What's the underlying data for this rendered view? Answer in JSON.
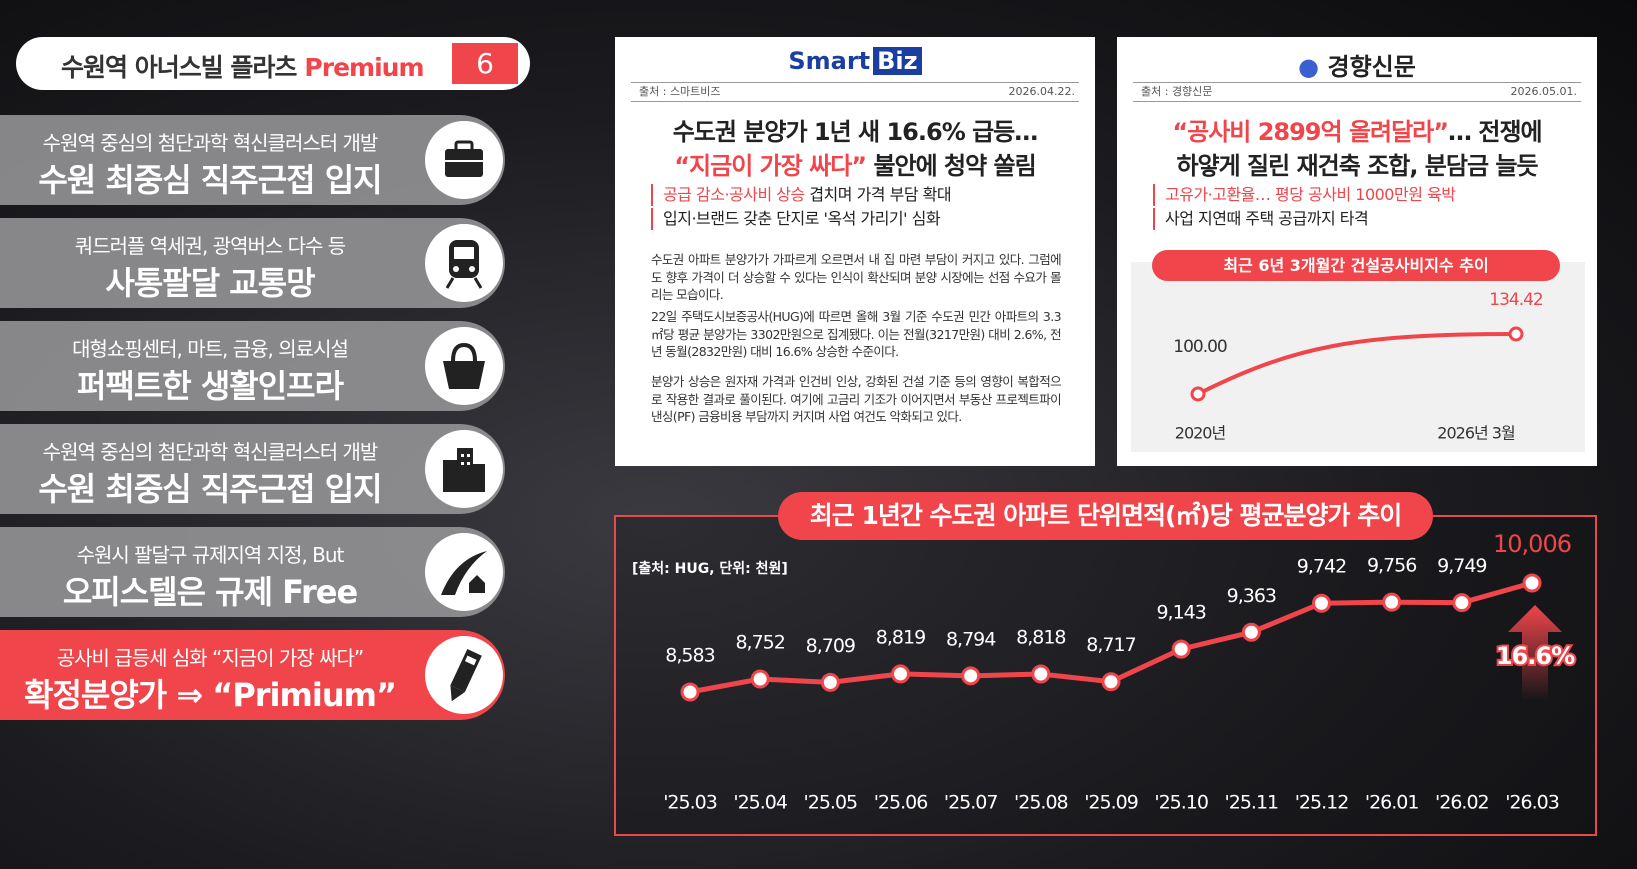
{
  "header": {
    "title": "수원역 아너스빌 플라츠",
    "badge": "Premium",
    "number": "6"
  },
  "features": [
    {
      "line1": "수원역 중심의 첨단과학 혁신클러스터 개발",
      "line2": "수원 최중심 직주근접 입지"
    },
    {
      "line1": "쿼드러플 역세권, 광역버스 다수 등",
      "line2": "사통팔달 교통망"
    },
    {
      "line1": "대형쇼핑센터, 마트, 금융, 의료시설",
      "line2": "퍼팩트한 생활인프라"
    },
    {
      "line1": "수원역 중심의 첨단과학 혁신클러스터 개발",
      "line2": "수원 최중심 직주근접 입지"
    },
    {
      "line1": "수원시 팔달구 규제지역 지정, But",
      "line2": "오피스텔은 규제 Free"
    },
    {
      "line1": "공사비 급등세 심화 “지금이 가장 싸다”",
      "line2": "확정분양가 ⇒ “Primium”"
    }
  ],
  "news": [
    {
      "logo": [
        "Smart",
        "Biz"
      ],
      "source": "출처 : 스마트비즈",
      "date": "2026.04.22.",
      "headline": [
        {
          "text": "수도권 분양가 1년 새 16.6% 급등…"
        },
        {
          "em": "“지금이 가장 싸다”",
          "text": " 불안에 청약 쏠림"
        }
      ],
      "bullets": [
        {
          "em": "공급 감소·공사비 상승",
          "text": " 겹치며 가격 부담 확대"
        },
        {
          "text": "입지·브랜드 갖춘 단지로 '옥석 가리기' 심화"
        }
      ],
      "paragraphs": [
        "수도권 아파트 분양가가 가파르게 오르면서 내 집 마련 부담이 커지고 있다. 그럼에도 향후 가격이 더 상승할 수 있다는 인식이 확산되며 분양 시장에는 선점 수요가 몰리는 모습이다.",
        "22일 주택도시보증공사(HUG)에 따르면 올해 3월 기준 수도권 민간 아파트의 3.3㎡당 평균 분양가는 3302만원으로 집계됐다. 이는 전월(3217만원) 대비 2.6%, 전년 동월(2832만원) 대비 16.6% 상승한 수준이다.",
        "분양가 상승은 원자재 가격과 인건비 인상, 강화된 건설 기준 등의 영향이 복합적으로 작용한 결과로 풀이된다. 여기에 고금리 기조가 이어지면서 부동산 프로젝트파이낸싱(PF) 금융비용 부담까지 커지며 사업 여건도 악화되고 있다."
      ]
    },
    {
      "logo": [
        "경향신문"
      ],
      "source": "출처 : 경향신문",
      "date": "2026.05.01.",
      "headline": [
        {
          "em": "“공사비 2899억 올려달라”",
          "text": "… 전쟁에"
        },
        {
          "text": "하얗게 질린 재건축 조합, 분담금 늘듯"
        }
      ],
      "bullets": [
        {
          "em": "고유가·고환율… 평당 공사비 1000만원 육박"
        },
        {
          "text": "사업 지연때 주택 공급까지 타격"
        }
      ]
    }
  ],
  "chart_data": [
    {
      "type": "line",
      "title": "최근 6년 3개월간 건설공사비지수 추이",
      "categories": [
        "2020년",
        "2026년 3월"
      ],
      "values": [
        100,
        134.42
      ],
      "value_labels": [
        "100.00",
        "134.42"
      ],
      "color": "#f0454a"
    },
    {
      "type": "line",
      "title": "최근 1년간 수도권 아파트 단위면적(㎡)당 평균분양가 추이",
      "subtitle": "[출처: HUG, 단위: 천원]",
      "categories": [
        "'25.03",
        "'25.04",
        "'25.05",
        "'25.06",
        "'25.07",
        "'25.08",
        "'25.09",
        "'25.10",
        "'25.11",
        "'25.12",
        "'26.01",
        "'26.02",
        "'26.03"
      ],
      "values": [
        8583,
        8752,
        8709,
        8819,
        8794,
        8818,
        8717,
        9143,
        9363,
        9742,
        9756,
        9749,
        10006
      ],
      "value_labels": [
        "8,583",
        "8,752",
        "8,709",
        "8,819",
        "8,794",
        "8,818",
        "8,717",
        "9,143",
        "9,363",
        "9,742",
        "9,756",
        "9,749",
        "10,006"
      ],
      "annotation": "16.6%",
      "color": "#f0454a"
    }
  ]
}
